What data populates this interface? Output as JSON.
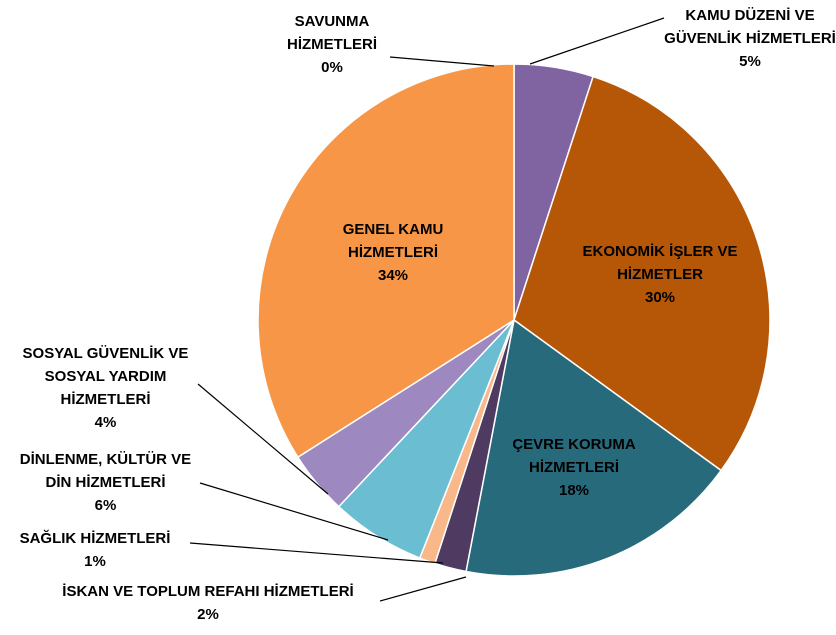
{
  "chart_data": {
    "type": "pie",
    "categories": [
      "SAVUNMA HİZMETLERİ",
      "KAMU DÜZENİ VE GÜVENLİK HİZMETLERİ",
      "EKONOMİK İŞLER VE HİZMETLER",
      "ÇEVRE KORUMA HİZMETLERİ",
      "İSKAN VE TOPLUM REFAHI HİZMETLERİ",
      "SAĞLIK HİZMETLERİ",
      "DİNLENME, KÜLTÜR VE DİN HİZMETLERİ",
      "SOSYAL GÜVENLİK VE SOSYAL YARDIM HİZMETLERİ",
      "GENEL KAMU HİZMETLERİ"
    ],
    "values": [
      0,
      5,
      30,
      18,
      2,
      1,
      6,
      4,
      34
    ],
    "value_labels": [
      "0%",
      "5%",
      "30%",
      "18%",
      "2%",
      "1%",
      "6%",
      "4%",
      "34%"
    ],
    "colors": [
      "#7f7f7f",
      "#8064a2",
      "#b65708",
      "#276a7c",
      "#4f3b62",
      "#f9b88a",
      "#6bbdd1",
      "#9d89bf",
      "#f79646"
    ]
  }
}
